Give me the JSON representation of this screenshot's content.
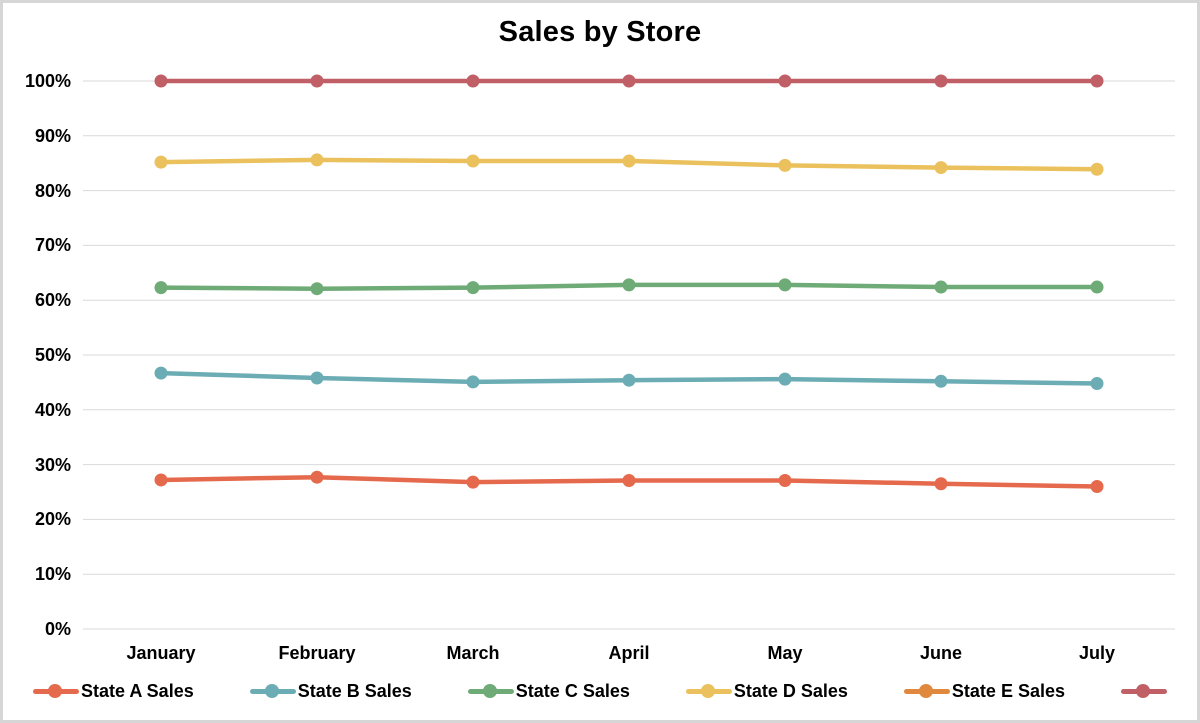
{
  "chart_data": {
    "type": "line",
    "title": "Sales by Store",
    "categories": [
      "January",
      "February",
      "March",
      "April",
      "May",
      "June",
      "July"
    ],
    "y_axis": {
      "min": 0,
      "max": 100,
      "step": 10,
      "tick_labels": [
        "0%",
        "10%",
        "20%",
        "30%",
        "40%",
        "50%",
        "60%",
        "70%",
        "80%",
        "90%",
        "100%"
      ]
    },
    "grid": true,
    "legend_position": "bottom",
    "series": [
      {
        "name": "State A Sales",
        "color": "#E5694C",
        "line_visible": true,
        "values": [
          27.2,
          27.7,
          26.8,
          27.1,
          27.1,
          26.5,
          26.0
        ]
      },
      {
        "name": "State B Sales",
        "color": "#6CACB4",
        "line_visible": true,
        "values": [
          46.7,
          45.8,
          45.1,
          45.4,
          45.6,
          45.2,
          44.8
        ]
      },
      {
        "name": "State C Sales",
        "color": "#6FAB76",
        "line_visible": true,
        "values": [
          62.3,
          62.1,
          62.3,
          62.8,
          62.8,
          62.4,
          62.4
        ]
      },
      {
        "name": "State D Sales",
        "color": "#EAC15D",
        "line_visible": true,
        "values": [
          85.2,
          85.6,
          85.4,
          85.4,
          84.6,
          84.2,
          83.9
        ]
      },
      {
        "name": "State E Sales",
        "color": "#E0883D",
        "line_visible": false,
        "values": null
      },
      {
        "name": "",
        "color": "#C05F66",
        "line_visible": true,
        "values": [
          100,
          100,
          100,
          100,
          100,
          100,
          100
        ]
      }
    ]
  },
  "colors": {
    "gridline": "#D9D9D9",
    "text": "#000000",
    "background": "#FFFFFF",
    "frame_border": "#D6D6D6"
  }
}
